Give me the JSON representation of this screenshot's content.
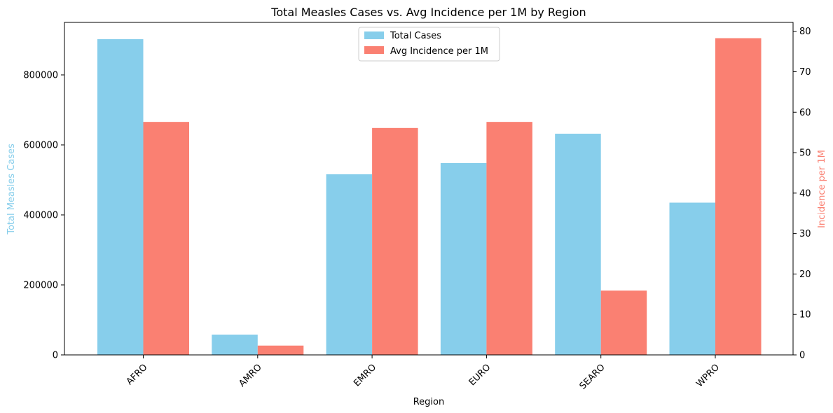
{
  "chart_data": {
    "type": "bar",
    "title": "Total Measles Cases vs. Avg Incidence per 1M by Region",
    "xlabel": "Region",
    "ylabel_left": "Total Measles Cases",
    "ylabel_right": "Incidence per 1M",
    "categories": [
      "AFRO",
      "AMRO",
      "EMRO",
      "EURO",
      "SEARO",
      "WPRO"
    ],
    "series": [
      {
        "name": "Total Cases",
        "axis": "left",
        "color": "#87ceeb",
        "values": [
          902000,
          58000,
          516000,
          548000,
          632000,
          435000
        ]
      },
      {
        "name": "Avg Incidence per 1M",
        "axis": "right",
        "color": "#fa8072",
        "values": [
          57.6,
          2.3,
          56.1,
          57.6,
          15.9,
          78.3
        ]
      }
    ],
    "ylim_left": [
      0,
      950000
    ],
    "ylim_right": [
      0,
      82.2
    ],
    "yticks_left": [
      0,
      200000,
      400000,
      600000,
      800000
    ],
    "yticks_right": [
      0,
      10,
      20,
      30,
      40,
      50,
      60,
      70,
      80
    ],
    "legend_position": "upper-center",
    "grid": false
  }
}
